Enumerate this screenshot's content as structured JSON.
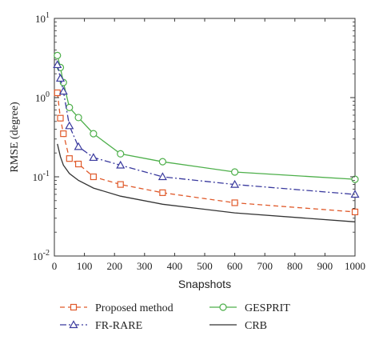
{
  "chart_data": {
    "type": "line",
    "xlabel": "Snapshots",
    "ylabel": "RMSE (degree)",
    "xlim": [
      0,
      1000
    ],
    "ylim": [
      0.01,
      10
    ],
    "yscale": "log",
    "xticks": [
      0,
      100,
      200,
      300,
      400,
      500,
      600,
      700,
      800,
      900,
      1000
    ],
    "yticks": [
      {
        "value": 0.01,
        "base": "10",
        "exp": "-2"
      },
      {
        "value": 0.1,
        "base": "10",
        "exp": "-1"
      },
      {
        "value": 1,
        "base": "10",
        "exp": "0"
      },
      {
        "value": 10,
        "base": "10",
        "exp": "1"
      }
    ],
    "grid": false,
    "legend_position": "bottom",
    "series": [
      {
        "name": "Proposed method",
        "color": "#e05a2b",
        "dash": "6,4",
        "marker": "square",
        "x": [
          10,
          20,
          30,
          50,
          80,
          130,
          220,
          360,
          600,
          1000
        ],
        "y": [
          1.15,
          0.55,
          0.35,
          0.17,
          0.145,
          0.1,
          0.08,
          0.063,
          0.047,
          0.036
        ]
      },
      {
        "name": "GESPRIT",
        "color": "#4daf4a",
        "dash": "",
        "marker": "circle",
        "x": [
          10,
          20,
          30,
          50,
          80,
          130,
          220,
          360,
          600,
          1000
        ],
        "y": [
          3.4,
          2.4,
          1.55,
          0.75,
          0.56,
          0.35,
          0.195,
          0.155,
          0.115,
          0.093
        ]
      },
      {
        "name": "FR-RARE",
        "color": "#3a3a9e",
        "dash": "8,3,2,3",
        "marker": "triangle",
        "x": [
          10,
          20,
          30,
          50,
          80,
          130,
          220,
          360,
          600,
          1000
        ],
        "y": [
          2.6,
          1.75,
          1.2,
          0.44,
          0.24,
          0.175,
          0.14,
          0.1,
          0.08,
          0.06
        ]
      },
      {
        "name": "CRB",
        "color": "#333333",
        "dash": "",
        "marker": "none",
        "x": [
          10,
          20,
          30,
          50,
          80,
          130,
          220,
          360,
          600,
          1000
        ],
        "y": [
          0.26,
          0.18,
          0.14,
          0.11,
          0.09,
          0.072,
          0.057,
          0.045,
          0.035,
          0.027
        ]
      }
    ],
    "legend_order": [
      "Proposed method",
      "GESPRIT",
      "FR-RARE",
      "CRB"
    ]
  }
}
